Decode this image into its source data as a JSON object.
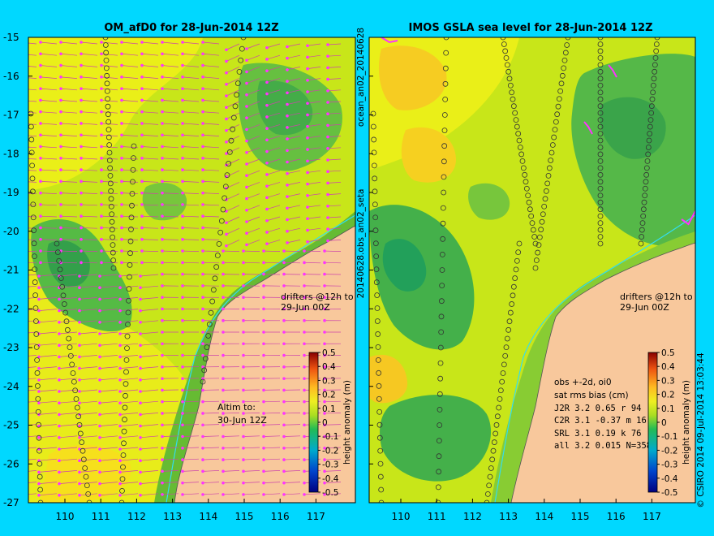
{
  "colors": {
    "background": "#00d8ff",
    "land": "#f8c89c",
    "drifter": "#ff33ff",
    "current": "#33ddee"
  },
  "colorbar": {
    "label": "height anomaly (m)",
    "ticks": [
      "0.5",
      "0.4",
      "0.3",
      "0.2",
      "0.1",
      "0",
      "-0.1",
      "-0.2",
      "-0.3",
      "-0.4",
      "-0.5"
    ],
    "range": [
      -0.5,
      0.5
    ]
  },
  "lat_ticks": [
    "-15",
    "-16",
    "-17",
    "-18",
    "-19",
    "-20",
    "-21",
    "-22",
    "-23",
    "-24",
    "-25",
    "-26",
    "-27"
  ],
  "lon_ticks": [
    "110",
    "111",
    "112",
    "113",
    "114",
    "115",
    "116",
    "117"
  ],
  "left_panel": {
    "title": "OM_afD0 for 28-Jun-2014 12Z",
    "drifters_line1": "drifters @12h to",
    "drifters_line2": "29-Jun 00Z",
    "altim_line1": "Altim to:",
    "altim_line2": "30-Jun 12Z"
  },
  "right_panel": {
    "title": "IMOS GSLA sea level  for 28-Jun-2014 12Z",
    "drifters_line1": "drifters @12h to",
    "drifters_line2": "29-Jun 00Z",
    "stats": [
      "obs +-2d, oi0",
      "sat rms bias (cm)",
      "J2R   3.2 0.65 r 94",
      "C2R   3.1 -0.37 m 16",
      "SRL   3.1 0.19 k 76",
      "all   3.2 0.015 N=358"
    ]
  },
  "side_labels": {
    "left_vertical": "20140628.obs_an02_seta",
    "left_vertical_top": "ocean_an02_20140628",
    "right_vertical": "© CSIRO 2014   09-Jul-2014 13:03:44"
  }
}
